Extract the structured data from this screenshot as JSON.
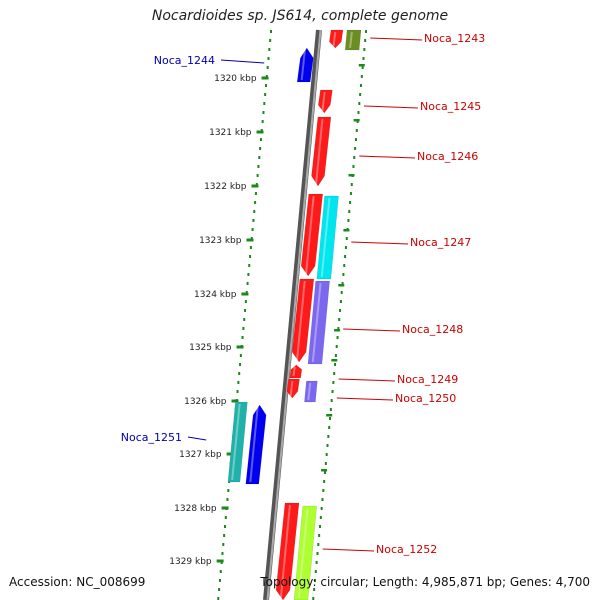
{
  "title": "Nocardioides sp. JS614, complete genome",
  "accession": "Accession: NC_008699",
  "topology": "Topology: circular; Length: 4,985,871 bp; Genes: 4,700",
  "colors": {
    "reverse_label": "#0000aa",
    "forward_label": "#cc0000",
    "tick": "#1a8a1a"
  },
  "ticks": [
    "1320 kbp",
    "1321 kbp",
    "1322 kbp",
    "1323 kbp",
    "1324 kbp",
    "1325 kbp",
    "1326 kbp",
    "1327 kbp",
    "1328 kbp",
    "1329 kbp"
  ],
  "genes": [
    {
      "label": "Noca_1243",
      "strand": "forward",
      "color": "#ff1a1a"
    },
    {
      "label": "",
      "strand": "forward",
      "color": "#6b8e23"
    },
    {
      "label": "Noca_1244",
      "strand": "reverse",
      "color": "#0000ee"
    },
    {
      "label": "Noca_1245",
      "strand": "forward",
      "color": "#ff1a1a"
    },
    {
      "label": "Noca_1246",
      "strand": "forward",
      "color": "#ff1a1a"
    },
    {
      "label": "Noca_1247",
      "strand": "forward",
      "color": "#ff1a1a"
    },
    {
      "label": "",
      "strand": "forward",
      "color": "#00e5ee"
    },
    {
      "label": "Noca_1248",
      "strand": "forward",
      "color": "#ff1a1a"
    },
    {
      "label": "",
      "strand": "forward",
      "color": "#7b68ee"
    },
    {
      "label": "Noca_1249",
      "strand": "forward",
      "color": "#ff1a1a"
    },
    {
      "label": "Noca_1250",
      "strand": "forward",
      "color": "#ff1a1a"
    },
    {
      "label": "",
      "strand": "forward",
      "color": "#7b68ee"
    },
    {
      "label": "Noca_1251",
      "strand": "reverse",
      "color": "#20b2aa"
    },
    {
      "label": "",
      "strand": "reverse",
      "color": "#0000ee"
    },
    {
      "label": "Noca_1252",
      "strand": "forward",
      "color": "#ff1a1a"
    },
    {
      "label": "",
      "strand": "forward",
      "color": "#adff2f"
    }
  ]
}
